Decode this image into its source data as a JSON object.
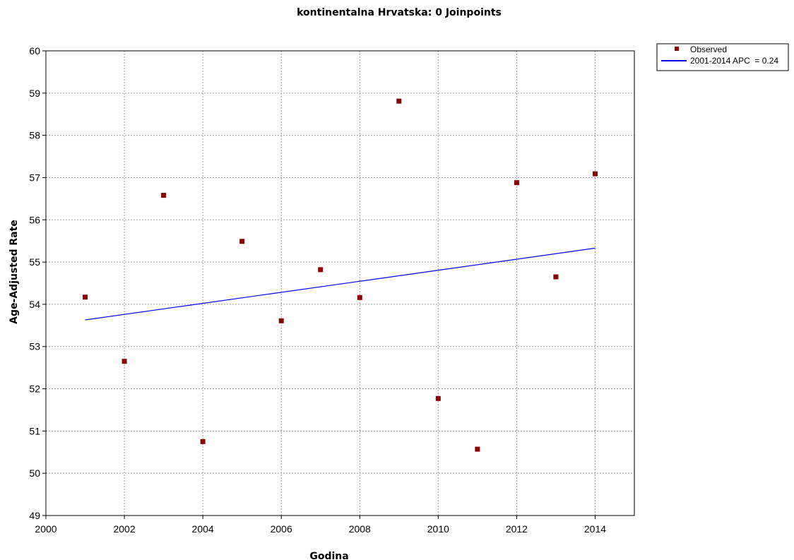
{
  "chart_data": {
    "type": "scatter",
    "title": "kontinentalna Hrvatska: 0 Joinpoints",
    "xlabel": "Godina",
    "ylabel": "Age-Adjusted Rate",
    "xlim": [
      2000,
      2015
    ],
    "ylim": [
      49,
      60
    ],
    "xticks": [
      2000,
      2002,
      2004,
      2006,
      2008,
      2010,
      2012,
      2014
    ],
    "yticks": [
      49,
      50,
      51,
      52,
      53,
      54,
      55,
      56,
      57,
      58,
      59,
      60
    ],
    "grid": true,
    "legend_position": "outside-top-right",
    "series": [
      {
        "name": "Observed",
        "kind": "scatter",
        "color": "#8b0000",
        "x": [
          2001,
          2002,
          2003,
          2004,
          2005,
          2006,
          2007,
          2008,
          2009,
          2010,
          2011,
          2012,
          2013,
          2014
        ],
        "y": [
          54.17,
          52.65,
          56.58,
          50.75,
          55.49,
          53.61,
          54.82,
          54.16,
          58.81,
          51.77,
          50.57,
          56.88,
          54.65,
          57.09
        ]
      },
      {
        "name": "2001-2014 APC  = 0.24",
        "kind": "line",
        "color": "#0000ff",
        "x": [
          2001,
          2014
        ],
        "y": [
          53.63,
          55.33
        ]
      }
    ]
  }
}
